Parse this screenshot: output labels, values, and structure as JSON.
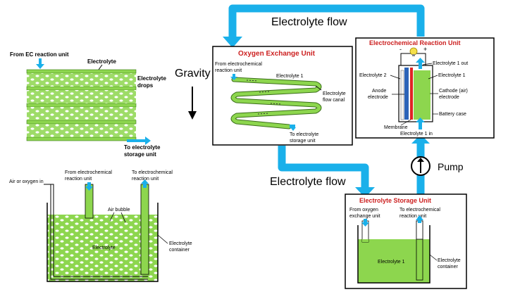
{
  "colors": {
    "flow_blue": "#1ab0ea",
    "electrolyte_green": "#8dd64e",
    "title_red": "#cc1f1f",
    "anode_blue": "#2b63b8",
    "membrane_red": "#e02424",
    "bulb_yellow": "#f5e04a"
  },
  "flows": {
    "top_label": "Electrolyte flow",
    "bottom_label": "Electrolyte flow",
    "gravity_label": "Gravity",
    "pump_label": "Pump"
  },
  "drops_panel": {
    "inlet_label": "From EC reaction unit",
    "electrolyte_label": "Electrolyte",
    "drops_label_line1": "Electrolyte",
    "drops_label_line2": "drops",
    "outlet_line1": "To electrolyte",
    "outlet_line2": "storage unit"
  },
  "bubbler_panel": {
    "air_in_label": "Air or oxygen in",
    "from_line1": "From electrochemical",
    "from_line2": "reaction unit",
    "to_line1": "To electrochemical",
    "to_line2": "reaction unit",
    "bubble_label": "Air bubble",
    "electrolyte_label": "Electrolyte",
    "container_line1": "Electrolyte",
    "container_line2": "container"
  },
  "oxygen_unit": {
    "title_main": "Oxygen ",
    "title_accent": "Exchange",
    "title_end": " Unit",
    "from_line1": "From electrochemical",
    "from_line2": "reaction unit",
    "electrolyte1_label": "Electrolyte 1",
    "canal_line1": "Electrolyte",
    "canal_line2": "flow canal",
    "to_line1": "To electrolyte",
    "to_line2": "storage unit"
  },
  "reaction_unit": {
    "title": "Electrochemical Reaction Unit",
    "minus": "-",
    "plus": "+",
    "electrolyte2_label": "Electrolyte 2",
    "electrolyte1_out": "Electrolyte 1 out",
    "electrolyte1_label": "Electrolyte 1",
    "anode_line1": "Anode",
    "anode_line2": "electrode",
    "cathode_line1": "Cathode (air)",
    "cathode_line2": "electrode",
    "battery_case": "Battery case",
    "membrane": "Membrane",
    "electrolyte1_in": "Electrolyte 1 in"
  },
  "storage_unit": {
    "title": "Electrolyte Storage Unit",
    "from_line1": "From oxygen",
    "from_line2": "exchange unit",
    "to_line1": "To electrochemical",
    "to_line2": "reaction unit",
    "electrolyte1_label": "Electrolyte 1",
    "container_line1": "Electrolyte",
    "container_line2": "container"
  }
}
